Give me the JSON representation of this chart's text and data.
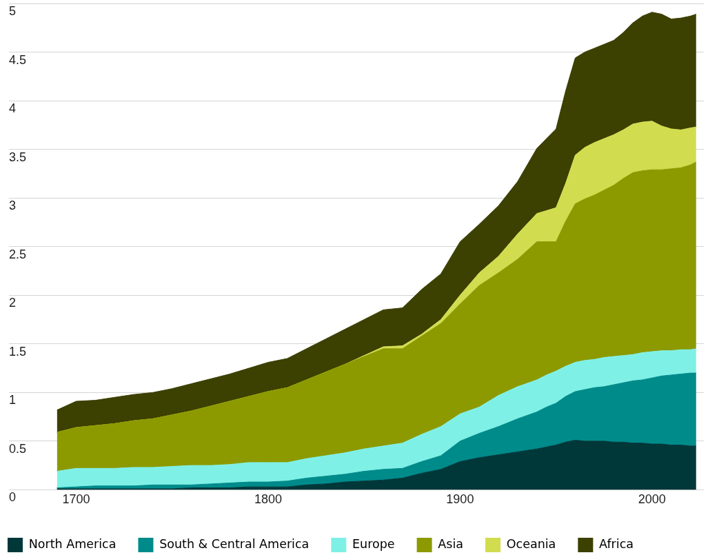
{
  "chart_data": {
    "type": "area",
    "stacked": true,
    "grid": "y",
    "legend": "bottom",
    "x": [
      1690,
      1700,
      1710,
      1720,
      1730,
      1740,
      1750,
      1760,
      1770,
      1780,
      1790,
      1800,
      1810,
      1820,
      1830,
      1840,
      1850,
      1860,
      1870,
      1880,
      1890,
      1900,
      1910,
      1920,
      1930,
      1940,
      1945,
      1950,
      1955,
      1960,
      1965,
      1970,
      1975,
      1980,
      1985,
      1990,
      1995,
      2000,
      2005,
      2010,
      2015,
      2020,
      2023
    ],
    "xlim": [
      1665,
      2027
    ],
    "xticks": [
      1700,
      1800,
      1900,
      2000
    ],
    "ylim": [
      0,
      5
    ],
    "yticks": [
      0,
      0.5,
      1,
      1.5,
      2,
      2.5,
      3,
      3.5,
      4,
      4.5,
      5
    ],
    "series": [
      {
        "name": "North America",
        "color": "#00383a",
        "values": [
          0.01,
          0.01,
          0.01,
          0.01,
          0.01,
          0.01,
          0.01,
          0.02,
          0.02,
          0.02,
          0.03,
          0.03,
          0.03,
          0.05,
          0.06,
          0.08,
          0.09,
          0.1,
          0.12,
          0.17,
          0.21,
          0.29,
          0.33,
          0.36,
          0.39,
          0.42,
          0.44,
          0.46,
          0.49,
          0.51,
          0.5,
          0.5,
          0.5,
          0.49,
          0.49,
          0.48,
          0.48,
          0.47,
          0.47,
          0.46,
          0.46,
          0.45,
          0.45
        ]
      },
      {
        "name": "South & Central America",
        "color": "#008b8b",
        "values": [
          0.01,
          0.02,
          0.03,
          0.03,
          0.03,
          0.04,
          0.04,
          0.03,
          0.04,
          0.05,
          0.05,
          0.05,
          0.06,
          0.07,
          0.08,
          0.08,
          0.1,
          0.11,
          0.1,
          0.12,
          0.14,
          0.21,
          0.25,
          0.29,
          0.34,
          0.38,
          0.41,
          0.43,
          0.47,
          0.5,
          0.53,
          0.55,
          0.56,
          0.59,
          0.61,
          0.64,
          0.65,
          0.68,
          0.7,
          0.72,
          0.73,
          0.75,
          0.75
        ]
      },
      {
        "name": "Europe",
        "color": "#7ff0e6",
        "values": [
          0.17,
          0.19,
          0.18,
          0.18,
          0.19,
          0.18,
          0.19,
          0.2,
          0.19,
          0.19,
          0.2,
          0.2,
          0.19,
          0.2,
          0.21,
          0.22,
          0.23,
          0.24,
          0.26,
          0.28,
          0.3,
          0.28,
          0.27,
          0.32,
          0.33,
          0.33,
          0.33,
          0.33,
          0.31,
          0.3,
          0.3,
          0.29,
          0.3,
          0.29,
          0.28,
          0.27,
          0.28,
          0.27,
          0.26,
          0.25,
          0.25,
          0.24,
          0.25
        ]
      },
      {
        "name": "Asia",
        "color": "#8c9a00",
        "values": [
          0.4,
          0.42,
          0.44,
          0.46,
          0.48,
          0.5,
          0.53,
          0.56,
          0.61,
          0.65,
          0.68,
          0.73,
          0.77,
          0.81,
          0.86,
          0.91,
          0.95,
          1.0,
          0.97,
          1.01,
          1.06,
          1.13,
          1.25,
          1.26,
          1.31,
          1.42,
          1.37,
          1.33,
          1.49,
          1.63,
          1.66,
          1.69,
          1.72,
          1.76,
          1.82,
          1.87,
          1.87,
          1.87,
          1.86,
          1.87,
          1.87,
          1.9,
          1.92
        ]
      },
      {
        "name": "Oceania",
        "color": "#d2dc4f",
        "values": [
          0,
          0,
          0,
          0,
          0,
          0,
          0,
          0,
          0,
          0,
          0,
          0,
          0,
          0,
          0,
          0,
          0.01,
          0.02,
          0.03,
          0.02,
          0.04,
          0.09,
          0.13,
          0.17,
          0.26,
          0.29,
          0.32,
          0.35,
          0.39,
          0.5,
          0.53,
          0.54,
          0.53,
          0.52,
          0.5,
          0.5,
          0.5,
          0.5,
          0.45,
          0.41,
          0.39,
          0.38,
          0.36
        ]
      },
      {
        "name": "Africa",
        "color": "#3c4000",
        "values": [
          0.23,
          0.27,
          0.26,
          0.27,
          0.27,
          0.27,
          0.27,
          0.28,
          0.28,
          0.28,
          0.29,
          0.3,
          0.3,
          0.32,
          0.34,
          0.36,
          0.37,
          0.38,
          0.39,
          0.46,
          0.47,
          0.55,
          0.5,
          0.52,
          0.54,
          0.67,
          0.74,
          0.81,
          0.95,
          1.0,
          0.98,
          0.97,
          0.97,
          0.97,
          1.0,
          1.04,
          1.09,
          1.12,
          1.15,
          1.13,
          1.15,
          1.15,
          1.16
        ]
      }
    ]
  }
}
